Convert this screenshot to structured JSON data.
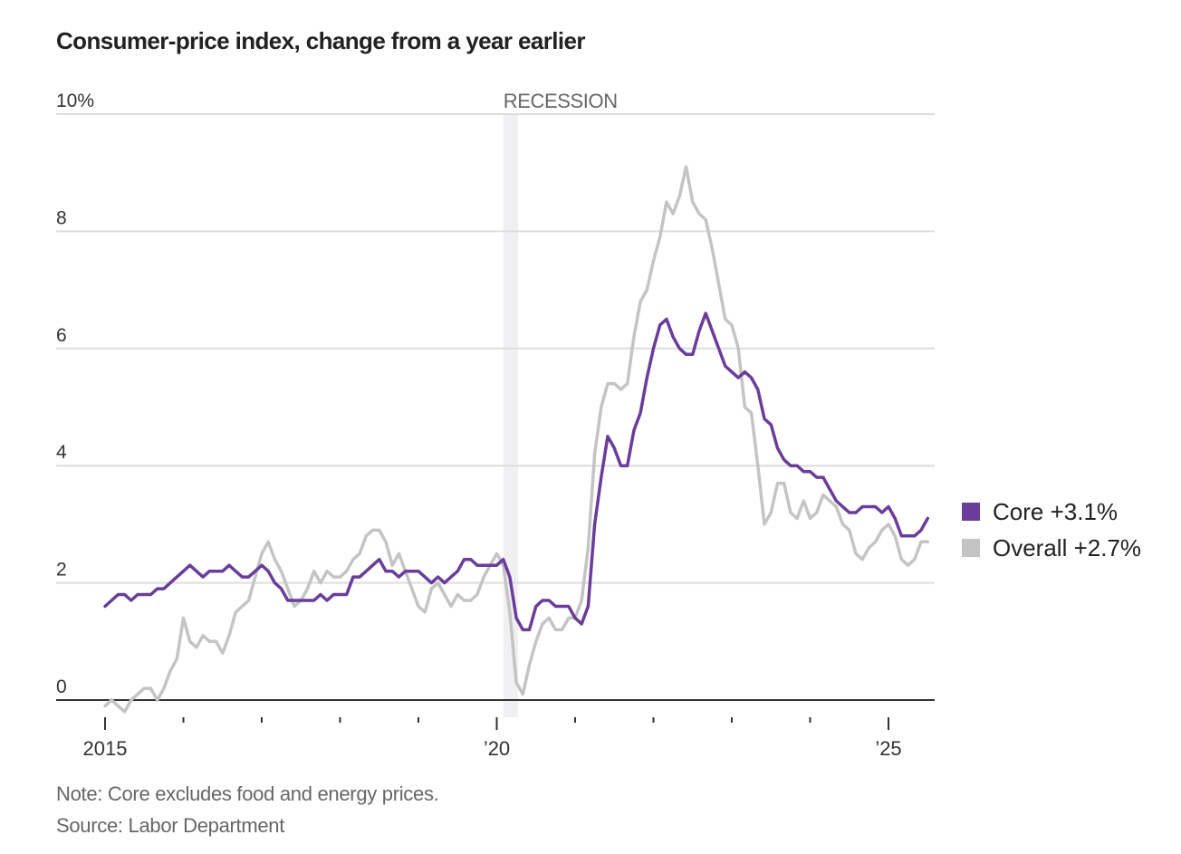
{
  "title": "Consumer-price index, change from a year earlier",
  "note": "Note: Core excludes food and energy prices.",
  "source": "Source: Labor Department",
  "recession_label": "RECESSION",
  "legend": [
    {
      "label": "Core +3.1%",
      "color": "#6a3d9a"
    },
    {
      "label": "Overall +2.7%",
      "color": "#c4c4c4"
    }
  ],
  "chart_data": {
    "type": "line",
    "title": "Consumer-price index, change from a year earlier",
    "xlabel": "",
    "ylabel": "",
    "x_start": "2015-01",
    "x_end": "2025-07",
    "frequency": "monthly",
    "ylim": [
      0,
      10
    ],
    "yticks": [
      0,
      2,
      4,
      6,
      8,
      10
    ],
    "ytick_labels": [
      "0",
      "2",
      "4",
      "6",
      "8",
      "10%"
    ],
    "xtick_labels": [
      {
        "year": 2015,
        "label": "2015"
      },
      {
        "year": 2020,
        "label": "’20"
      },
      {
        "year": 2025,
        "label": "’25"
      }
    ],
    "xtick_years": [
      2015,
      2016,
      2017,
      2018,
      2019,
      2020,
      2021,
      2022,
      2023,
      2024,
      2025
    ],
    "grid": true,
    "legend_position": "right",
    "recession": {
      "start": "2020-02",
      "end": "2020-04",
      "label": "RECESSION"
    },
    "series": [
      {
        "name": "Core",
        "color": "#6a3d9a",
        "values": [
          1.6,
          1.7,
          1.8,
          1.8,
          1.7,
          1.8,
          1.8,
          1.8,
          1.9,
          1.9,
          2.0,
          2.1,
          2.2,
          2.3,
          2.2,
          2.1,
          2.2,
          2.2,
          2.2,
          2.3,
          2.2,
          2.1,
          2.1,
          2.2,
          2.3,
          2.2,
          2.0,
          1.9,
          1.7,
          1.7,
          1.7,
          1.7,
          1.7,
          1.8,
          1.7,
          1.8,
          1.8,
          1.8,
          2.1,
          2.1,
          2.2,
          2.3,
          2.4,
          2.2,
          2.2,
          2.1,
          2.2,
          2.2,
          2.2,
          2.1,
          2.0,
          2.1,
          2.0,
          2.1,
          2.2,
          2.4,
          2.4,
          2.3,
          2.3,
          2.3,
          2.3,
          2.4,
          2.1,
          1.4,
          1.2,
          1.2,
          1.6,
          1.7,
          1.7,
          1.6,
          1.6,
          1.6,
          1.4,
          1.3,
          1.6,
          3.0,
          3.8,
          4.5,
          4.3,
          4.0,
          4.0,
          4.6,
          4.9,
          5.5,
          6.0,
          6.4,
          6.5,
          6.2,
          6.0,
          5.9,
          5.9,
          6.3,
          6.6,
          6.3,
          6.0,
          5.7,
          5.6,
          5.5,
          5.6,
          5.5,
          5.3,
          4.8,
          4.7,
          4.3,
          4.1,
          4.0,
          4.0,
          3.9,
          3.9,
          3.8,
          3.8,
          3.6,
          3.4,
          3.3,
          3.2,
          3.2,
          3.3,
          3.3,
          3.3,
          3.2,
          3.3,
          3.1,
          2.8,
          2.8,
          2.8,
          2.9,
          3.1
        ]
      },
      {
        "name": "Overall",
        "color": "#c4c4c4",
        "values": [
          -0.1,
          0.0,
          -0.1,
          -0.2,
          0.0,
          0.1,
          0.2,
          0.2,
          0.0,
          0.2,
          0.5,
          0.7,
          1.4,
          1.0,
          0.9,
          1.1,
          1.0,
          1.0,
          0.8,
          1.1,
          1.5,
          1.6,
          1.7,
          2.1,
          2.5,
          2.7,
          2.4,
          2.2,
          1.9,
          1.6,
          1.7,
          1.9,
          2.2,
          2.0,
          2.2,
          2.1,
          2.1,
          2.2,
          2.4,
          2.5,
          2.8,
          2.9,
          2.9,
          2.7,
          2.3,
          2.5,
          2.2,
          1.9,
          1.6,
          1.5,
          1.9,
          2.0,
          1.8,
          1.6,
          1.8,
          1.7,
          1.7,
          1.8,
          2.1,
          2.3,
          2.5,
          2.3,
          1.5,
          0.3,
          0.1,
          0.6,
          1.0,
          1.3,
          1.4,
          1.2,
          1.2,
          1.4,
          1.4,
          1.7,
          2.6,
          4.2,
          5.0,
          5.4,
          5.4,
          5.3,
          5.4,
          6.2,
          6.8,
          7.0,
          7.5,
          7.9,
          8.5,
          8.3,
          8.6,
          9.1,
          8.5,
          8.3,
          8.2,
          7.7,
          7.1,
          6.5,
          6.4,
          6.0,
          5.0,
          4.9,
          4.0,
          3.0,
          3.2,
          3.7,
          3.7,
          3.2,
          3.1,
          3.4,
          3.1,
          3.2,
          3.5,
          3.4,
          3.3,
          3.0,
          2.9,
          2.5,
          2.4,
          2.6,
          2.7,
          2.9,
          3.0,
          2.8,
          2.4,
          2.3,
          2.4,
          2.7,
          2.7
        ]
      }
    ]
  }
}
